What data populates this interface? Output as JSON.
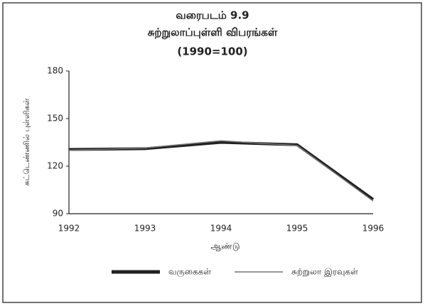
{
  "chart_data": {
    "type": "line",
    "title": "வரைபடம் 9.9",
    "subtitle": [
      "சுற்றுலாப்புள்ளி விபரங்கள்",
      "(1990=100)"
    ],
    "x_label": "ஆண்டு",
    "y_label": "சுட்டெண்ணில் புள்ளிகள்",
    "categories": [
      "1992",
      "1993",
      "1994",
      "1995",
      "1996"
    ],
    "series": [
      {
        "name": "வருகைகள்",
        "color": "#222222",
        "values": [
          130.5,
          131,
          135,
          133.5,
          99
        ]
      },
      {
        "name": "சுற்றுலா இரவுகள்",
        "color": "#777777",
        "values": [
          130,
          131.5,
          136,
          133,
          98
        ]
      }
    ],
    "ylim": [
      90,
      180
    ],
    "yticks": [
      90,
      120,
      150,
      180
    ],
    "grid": false
  }
}
